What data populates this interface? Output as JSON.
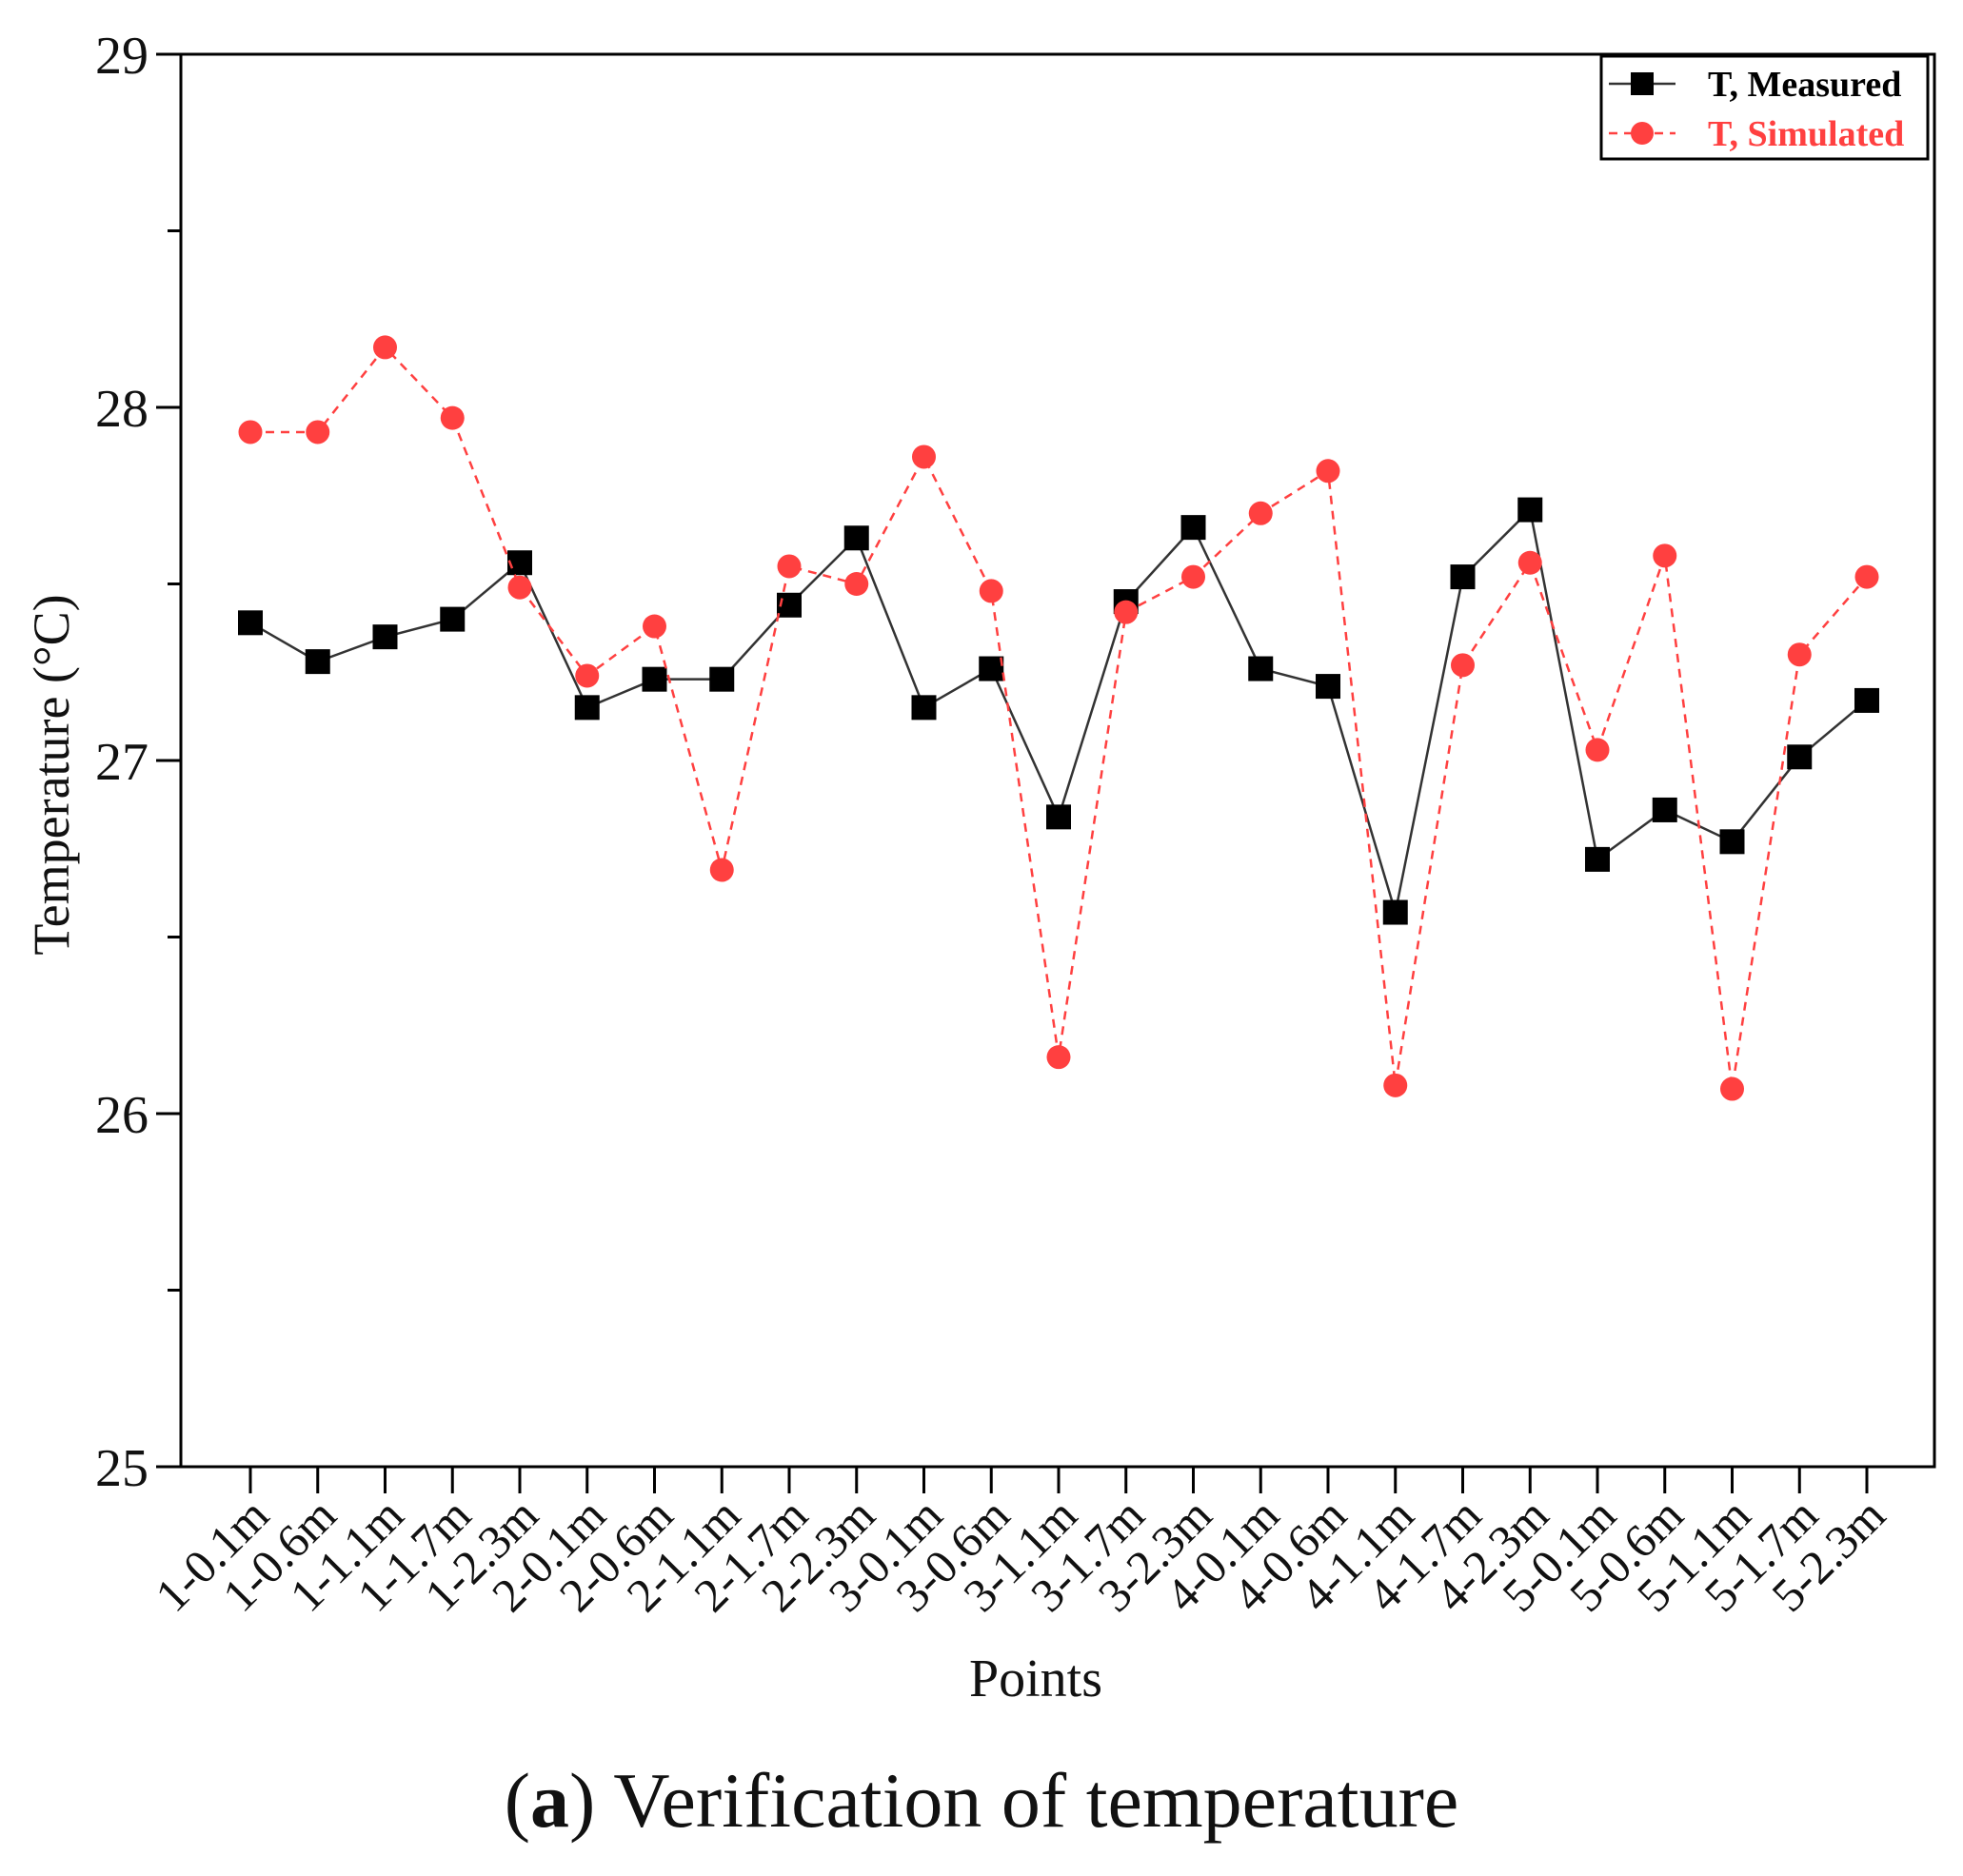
{
  "chart_data": {
    "type": "line",
    "title": "",
    "xlabel": "Points",
    "ylabel": "Temperature (°C)",
    "ylim": [
      25,
      29
    ],
    "yticks": [
      25,
      26,
      27,
      28,
      29
    ],
    "grid": false,
    "legend_position": "top-right",
    "categories": [
      "1-0.1m",
      "1-0.6m",
      "1-1.1m",
      "1-1.7m",
      "1-2.3m",
      "2-0.1m",
      "2-0.6m",
      "2-1.1m",
      "2-1.7m",
      "2-2.3m",
      "3-0.1m",
      "3-0.6m",
      "3-1.1m",
      "3-1.7m",
      "3-2.3m",
      "4-0.1m",
      "4-0.6m",
      "4-1.1m",
      "4-1.7m",
      "4-2.3m",
      "5-0.1m",
      "5-0.6m",
      "5-1.1m",
      "5-1.7m",
      "5-2.3m"
    ],
    "series": [
      {
        "name": "T, Measured",
        "color": "#000000",
        "marker": "square",
        "line_style": "solid",
        "values": [
          27.39,
          27.28,
          27.35,
          27.4,
          27.56,
          27.15,
          27.23,
          27.23,
          27.44,
          27.63,
          27.15,
          27.26,
          26.84,
          27.45,
          27.66,
          27.26,
          27.21,
          26.57,
          27.52,
          27.71,
          26.72,
          26.86,
          26.77,
          27.01,
          27.17
        ]
      },
      {
        "name": "T, Simulated",
        "color": "#ff4040",
        "marker": "circle",
        "line_style": "dashed",
        "values": [
          27.93,
          27.93,
          28.17,
          27.97,
          27.49,
          27.24,
          27.38,
          26.69,
          27.55,
          27.5,
          27.86,
          27.48,
          26.16,
          27.42,
          27.52,
          27.7,
          27.82,
          26.08,
          27.27,
          27.56,
          27.03,
          27.58,
          26.07,
          27.3,
          27.52
        ]
      }
    ]
  },
  "caption": {
    "label": "a",
    "text": " Verification of temperature"
  }
}
